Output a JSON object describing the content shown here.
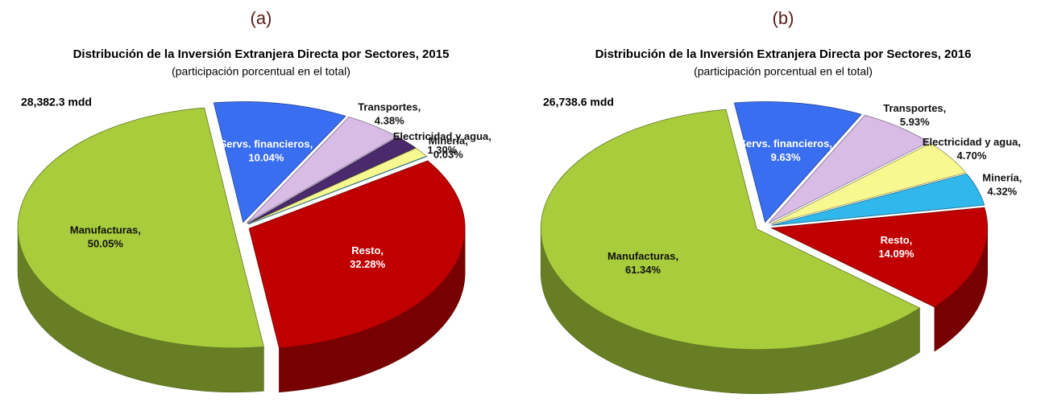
{
  "chart_data": [
    {
      "type": "pie",
      "panel": "(a)",
      "title": "Distribución de la Inversión Extranjera Directa por Sectores, 2015",
      "subtitle": "(participación porcentual en el total)",
      "total_label": "28,382.3 mdd",
      "categories": [
        "Manufacturas,",
        "Servs. financieros,",
        "Transportes,",
        null,
        "Electricidad y agua,",
        "Minería,",
        "Resto,"
      ],
      "values": [
        50.05,
        10.04,
        4.38,
        1.92,
        1.3,
        0.03,
        32.28
      ],
      "value_labels": [
        "50.05%",
        "10.04%",
        "4.38%",
        null,
        "1.30%",
        "0.03%",
        "32.28%"
      ],
      "colors": [
        "#a8cc3c",
        "#3a6ef0",
        "#d8bce6",
        "#4a2a6c",
        "#f8f890",
        "#30b8ec",
        "#c00000"
      ]
    },
    {
      "type": "pie",
      "panel": "(b)",
      "title": "Distribución de la Inversión Extranjera Directa por Sectores, 2016",
      "subtitle": "(participación porcentual en el total)",
      "total_label": "26,738.6 mdd",
      "categories": [
        "Manufacturas,",
        "Servs. financieros,",
        "Transportes,",
        "Electricidad y agua,",
        "Minería,",
        "Resto,"
      ],
      "values": [
        61.34,
        9.63,
        5.93,
        4.7,
        4.32,
        14.09
      ],
      "value_labels": [
        "61.34%",
        "9.63%",
        "5.93%",
        "4.70%",
        "4.32%",
        "14.09%"
      ],
      "colors": [
        "#a8cc3c",
        "#3a6ef0",
        "#d8bce6",
        "#f8f890",
        "#30b8ec",
        "#c00000"
      ]
    }
  ]
}
